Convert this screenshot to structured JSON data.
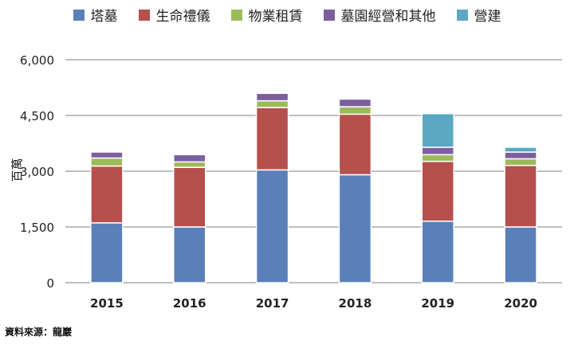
{
  "chart_data": {
    "type": "bar",
    "stacked": true,
    "categories": [
      "2015",
      "2016",
      "2017",
      "2018",
      "2019",
      "2020"
    ],
    "series": [
      {
        "name": "塔墓",
        "color": "#5B80B9",
        "values": [
          1610,
          1500,
          3035,
          2905,
          1655,
          1500
        ]
      },
      {
        "name": "生命禮儀",
        "color": "#B5504D",
        "values": [
          1530,
          1605,
          1680,
          1630,
          1610,
          1655
        ]
      },
      {
        "name": "物業租賃",
        "color": "#9BBB59",
        "values": [
          215,
          145,
          180,
          200,
          180,
          180
        ]
      },
      {
        "name": "墓園經營和其他",
        "color": "#7D5FA0",
        "values": [
          160,
          195,
          200,
          205,
          200,
          180
        ]
      },
      {
        "name": "營建",
        "color": "#5BA8C2",
        "values": [
          0,
          0,
          0,
          0,
          905,
          130
        ]
      }
    ],
    "ylabel": "百萬",
    "ylim": [
      0,
      6000
    ],
    "yticks": [
      0,
      1500,
      3000,
      4500,
      6000
    ],
    "ytick_labels": [
      "0",
      "1,500",
      "3,000",
      "4,500",
      "6,000"
    ],
    "grid": true,
    "legend": "top",
    "source": "資料來源：龍巖"
  }
}
